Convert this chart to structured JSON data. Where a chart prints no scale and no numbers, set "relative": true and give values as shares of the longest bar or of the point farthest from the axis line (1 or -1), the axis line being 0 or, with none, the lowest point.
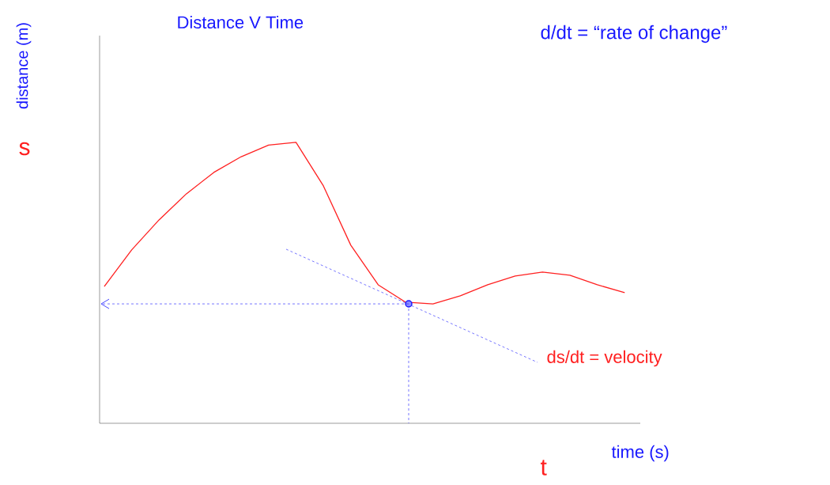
{
  "chart_data": {
    "type": "line",
    "relative": true,
    "title": "Distance V Time",
    "xlabel": "time (s)",
    "ylabel": "distance (m)",
    "ref_lines": [
      {
        "axis": "y",
        "value": 0.425,
        "color": "#1a1aff",
        "line_style": "dashed"
      }
    ],
    "annotations": [
      "s",
      "t",
      "d/dt = “rate of change”",
      "ds/dt = velocity"
    ],
    "categories": [
      null,
      null,
      null,
      null,
      null,
      null,
      null,
      null,
      null,
      null,
      null,
      null,
      null,
      null,
      null,
      null,
      null,
      null,
      null,
      null
    ],
    "series": [
      {
        "color": "#ff2020",
        "values": [
          0.487,
          0.617,
          0.724,
          0.817,
          0.893,
          0.949,
          0.99,
          1.0,
          0.845,
          0.634,
          0.493,
          0.431,
          0.425,
          0.454,
          0.493,
          0.524,
          0.538,
          0.527,
          0.493,
          0.465
        ]
      }
    ]
  }
}
